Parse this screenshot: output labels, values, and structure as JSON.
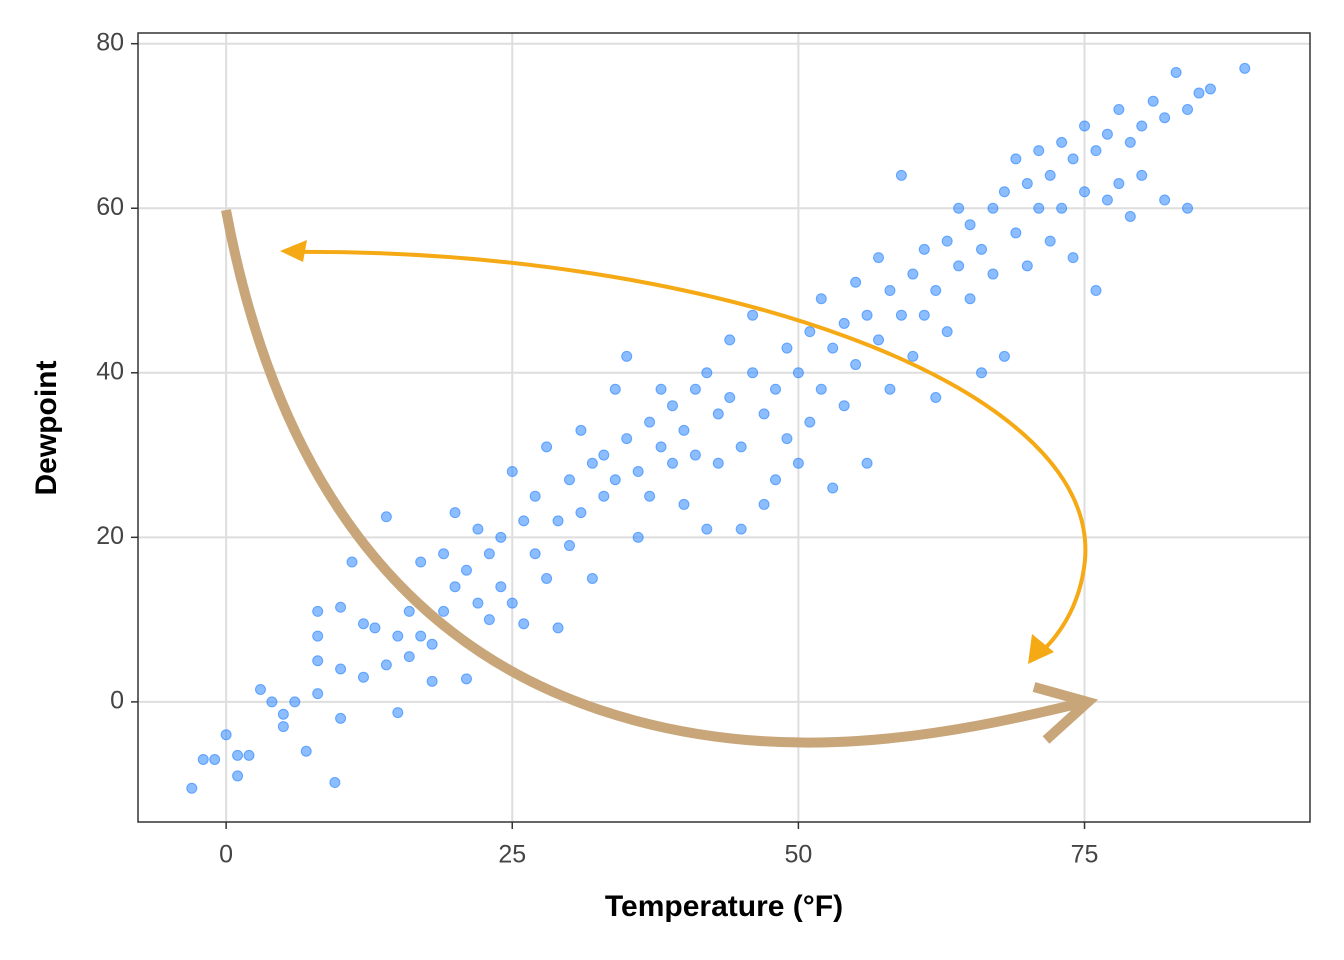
{
  "chart_data": {
    "type": "scatter",
    "x_label": "Temperature (°F)",
    "y_label": "Dewpoint",
    "color": "#1a7cff",
    "grid": true,
    "xlim": [
      -7.7,
      94.7
    ],
    "ylim": [
      -14.6,
      81.3
    ],
    "xticks": [
      0,
      25,
      50,
      75
    ],
    "yticks": [
      0,
      20,
      40,
      60,
      80
    ],
    "series": [
      {
        "name": "Dewpoint",
        "x": [
          -3,
          -2,
          -1,
          0,
          1,
          1,
          2,
          3,
          4,
          5,
          5,
          6,
          7,
          8,
          8,
          8,
          8,
          9.5,
          10,
          10,
          10,
          11,
          12,
          12,
          13,
          14,
          14,
          15,
          15,
          16,
          16,
          17,
          17,
          18,
          18,
          19,
          19,
          20,
          20,
          21,
          21,
          22,
          22,
          23,
          23,
          24,
          24,
          25,
          25,
          26,
          26,
          27,
          27,
          28,
          28,
          29,
          29,
          30,
          30,
          31,
          31,
          32,
          32,
          33,
          33,
          34,
          34,
          35,
          35,
          36,
          36,
          37,
          37,
          38,
          38,
          39,
          39,
          40,
          40,
          41,
          41,
          42,
          42,
          43,
          43,
          44,
          44,
          45,
          45,
          46,
          46,
          47,
          47,
          48,
          48,
          49,
          49,
          50,
          50,
          51,
          51,
          52,
          52,
          53,
          53,
          54,
          54,
          55,
          55,
          56,
          56,
          57,
          57,
          58,
          58,
          59,
          59,
          60,
          60,
          61,
          61,
          62,
          62,
          63,
          63,
          64,
          64,
          65,
          65,
          66,
          66,
          67,
          67,
          68,
          68,
          69,
          69,
          70,
          70,
          71,
          71,
          72,
          72,
          73,
          73,
          74,
          74,
          75,
          75,
          76,
          76,
          77,
          77,
          78,
          78,
          79,
          79,
          80,
          80,
          81,
          82,
          82,
          83,
          84,
          84,
          85,
          86,
          89
        ],
        "values": [
          -10.5,
          -7,
          -7,
          -4,
          -6.5,
          -9,
          -6.5,
          1.5,
          0,
          -1.5,
          -3,
          0,
          -6,
          1,
          5,
          8,
          11,
          -9.8,
          -2,
          4,
          11.5,
          17,
          3,
          9.5,
          9,
          4.5,
          22.5,
          -1.3,
          8,
          5.5,
          11,
          17,
          8,
          2.5,
          7,
          11,
          18,
          14,
          23,
          2.8,
          16,
          12,
          21,
          18,
          10,
          14,
          20,
          12,
          28,
          9.5,
          22,
          18,
          25,
          15,
          31,
          9,
          22,
          27,
          19,
          23,
          33,
          29,
          15,
          25,
          30,
          27,
          38,
          42,
          32,
          28,
          20,
          34,
          25,
          31,
          38,
          29,
          36,
          33,
          24,
          38,
          30,
          40,
          21,
          35,
          29,
          37,
          44,
          31,
          21,
          40,
          47,
          35,
          24,
          38,
          27,
          43,
          32,
          40,
          29,
          45,
          34,
          38,
          49,
          43,
          26,
          46,
          36,
          41,
          51,
          47,
          29,
          44,
          54,
          50,
          38,
          47,
          64,
          52,
          42,
          55,
          47,
          50,
          37,
          56,
          45,
          53,
          60,
          58,
          49,
          55,
          40,
          60,
          52,
          62,
          42,
          57,
          66,
          63,
          53,
          60,
          67,
          64,
          56,
          68,
          60,
          66,
          54,
          70,
          62,
          67,
          50,
          69,
          61,
          72,
          63,
          68,
          59,
          70,
          64,
          73,
          71,
          61,
          76.5,
          72,
          60,
          74,
          74.5,
          77
        ]
      }
    ]
  }
}
